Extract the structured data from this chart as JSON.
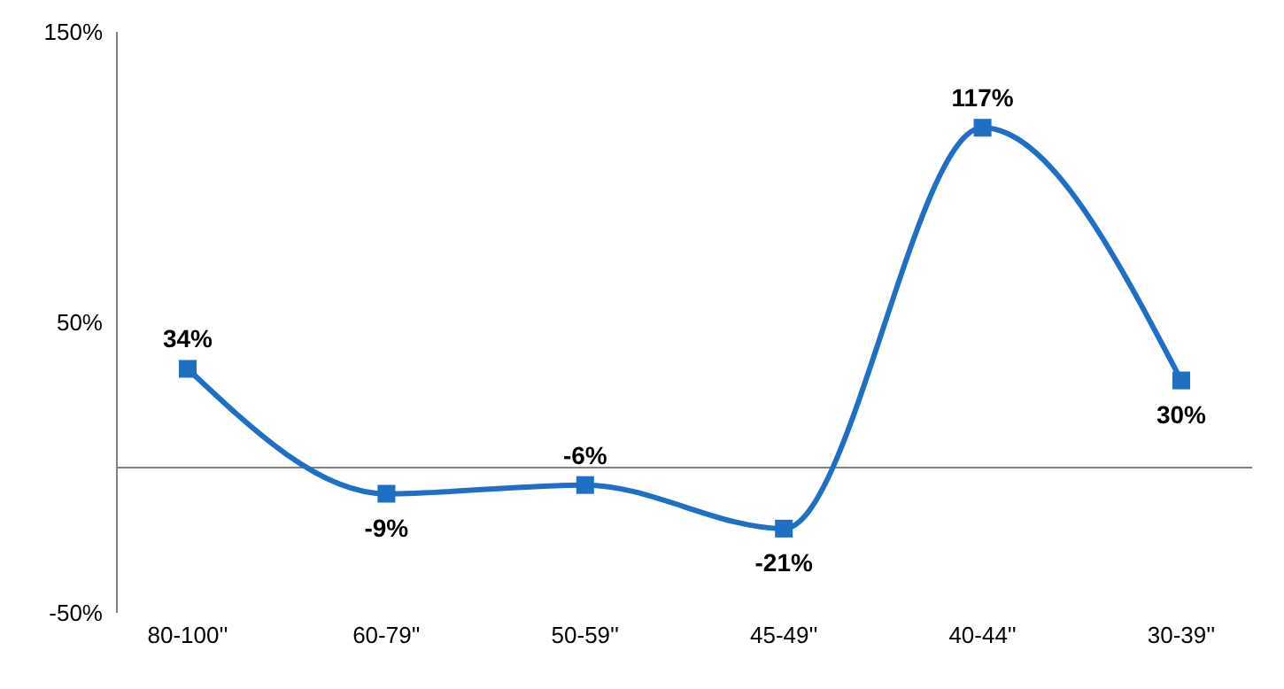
{
  "chart_data": {
    "type": "line",
    "categories": [
      "80-100''",
      "60-79''",
      "50-59''",
      "45-49''",
      "40-44''",
      "30-39''"
    ],
    "series": [
      {
        "color": "#1f6fc5",
        "values": [
          34,
          -9,
          -6,
          -21,
          117,
          30
        ],
        "value_labels": [
          "34%",
          "-9%",
          "-6%",
          "-21%",
          "117%",
          "30%"
        ]
      }
    ],
    "ylim": [
      -50,
      150
    ],
    "yticks": [
      {
        "value": -50,
        "label": "-50%"
      },
      {
        "value": 50,
        "label": "50%"
      },
      {
        "value": 150,
        "label": "150%"
      }
    ],
    "ref_lines": [
      {
        "axis": "y",
        "value": 0,
        "color": "#808080"
      }
    ],
    "marker": "square",
    "line_style": "solid",
    "grid": false,
    "legend": false
  }
}
